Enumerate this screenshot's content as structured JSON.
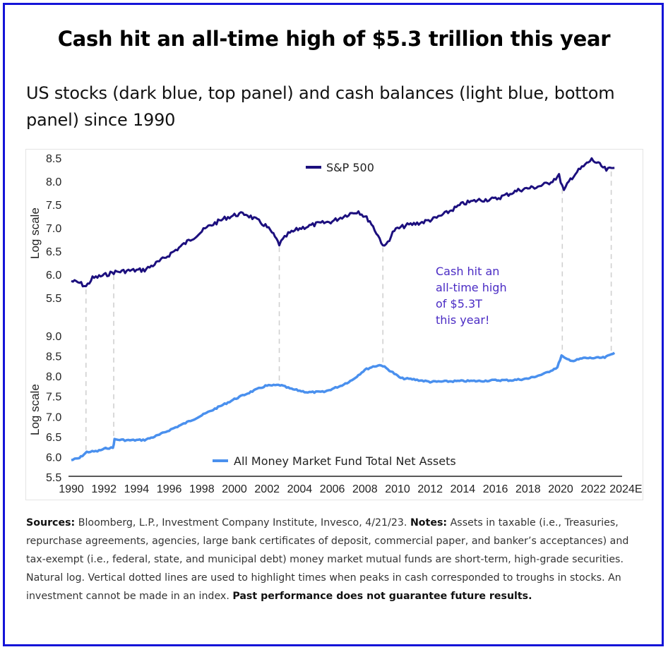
{
  "title": "Cash hit an all-time high of $5.3 trillion this year",
  "subtitle": "US stocks (dark blue, top panel) and cash balances (light blue, bottom panel) since 1990",
  "notes": {
    "sources_label": "Sources:",
    "sources_text": " Bloomberg, L.P., Investment Company Institute, Invesco, 4/21/23. ",
    "notes_label": "Notes:",
    "notes_text": " Assets in taxable (i.e., Treasuries, repurchase agreements, agencies, large bank certificates of deposit, commercial paper, and banker’s acceptances) and tax-exempt (i.e., federal, state, and municipal debt) money market mutual funds are short-term, high-grade securities. Natural log. Vertical dotted lines are used to highlight times when peaks in cash corresponded to troughs in stocks. An investment cannot be made in an index. ",
    "disclaimer": "Past performance does not guarantee future results."
  },
  "colors": {
    "sp500": "#1c0f7e",
    "cash": "#4a90ee",
    "annotation": "#4a2bc4",
    "guide": "#d0d0d0",
    "frame": "#1414d8"
  },
  "chart_data": [
    {
      "type": "line",
      "panel": "top",
      "title": "",
      "ylabel": "Log scale",
      "xlabel": "",
      "ylim": [
        5.5,
        8.5
      ],
      "yticks": [
        "8.5",
        "8.0",
        "7.5",
        "7.0",
        "6.5",
        "6.0",
        "5.5"
      ],
      "legend": "top-center",
      "series": [
        {
          "name": "S&P 500",
          "x": [
            1990.0,
            1990.5,
            1990.9,
            1991.3,
            1992.0,
            1992.6,
            1993.5,
            1994.5,
            1995.5,
            1996.5,
            1997.5,
            1998.5,
            1999.5,
            2000.2,
            2000.7,
            2001.3,
            2001.9,
            2002.3,
            2002.75,
            2003.3,
            2004.0,
            2005.0,
            2006.0,
            2007.0,
            2007.6,
            2008.3,
            2008.7,
            2009.2,
            2009.8,
            2010.5,
            2011.5,
            2012.3,
            2013.0,
            2014.0,
            2015.0,
            2016.0,
            2016.6,
            2017.5,
            2018.5,
            2019.2,
            2019.9,
            2020.2,
            2020.6,
            2021.0,
            2021.9,
            2022.4,
            2022.8,
            2023.3
          ],
          "values": [
            5.86,
            5.82,
            5.74,
            5.92,
            5.98,
            6.05,
            6.08,
            6.1,
            6.3,
            6.55,
            6.8,
            7.05,
            7.22,
            7.29,
            7.3,
            7.18,
            7.05,
            6.9,
            6.65,
            6.87,
            6.99,
            7.08,
            7.14,
            7.3,
            7.36,
            7.15,
            6.9,
            6.58,
            6.95,
            7.05,
            7.12,
            7.2,
            7.32,
            7.52,
            7.6,
            7.62,
            7.7,
            7.82,
            7.88,
            7.95,
            8.12,
            7.79,
            8.05,
            8.2,
            8.47,
            8.35,
            8.24,
            8.29
          ]
        }
      ]
    },
    {
      "type": "line",
      "panel": "bottom",
      "title": "",
      "ylabel": "Log scale",
      "xlabel": "",
      "ylim": [
        5.5,
        9.0
      ],
      "yticks": [
        "9.0",
        "8.5",
        "8.0",
        "7.5",
        "7.0",
        "6.5",
        "6.0",
        "5.5"
      ],
      "xticks": [
        "1990",
        "1992",
        "1994",
        "1996",
        "1998",
        "2000",
        "2002",
        "2004",
        "2006",
        "2008",
        "2010",
        "2012",
        "2014",
        "2016",
        "2018",
        "2020",
        "2022",
        "2024E"
      ],
      "xlim": [
        1990,
        2024
      ],
      "legend": "bottom-center",
      "series": [
        {
          "name": "All Money Market Fund Total Net Assets",
          "x": [
            1990.0,
            1990.5,
            1990.95,
            1991.6,
            1992.2,
            1992.55,
            1992.65,
            1993.5,
            1994.5,
            1995.3,
            1996.0,
            1997.0,
            1998.0,
            1999.0,
            2000.0,
            2001.0,
            2001.9,
            2002.8,
            2003.5,
            2004.5,
            2005.5,
            2006.5,
            2007.2,
            2008.0,
            2008.5,
            2009.0,
            2009.6,
            2010.2,
            2011.0,
            2012.0,
            2013.0,
            2014.0,
            2015.0,
            2016.0,
            2017.0,
            2018.0,
            2019.0,
            2019.8,
            2020.05,
            2020.3,
            2020.8,
            2021.4,
            2022.0,
            2022.7,
            2023.3
          ],
          "values": [
            5.92,
            5.97,
            6.12,
            6.14,
            6.22,
            6.22,
            6.43,
            6.41,
            6.42,
            6.53,
            6.66,
            6.84,
            7.03,
            7.23,
            7.43,
            7.61,
            7.76,
            7.78,
            7.68,
            7.6,
            7.61,
            7.76,
            7.9,
            8.16,
            8.24,
            8.28,
            8.12,
            7.95,
            7.92,
            7.86,
            7.87,
            7.88,
            7.88,
            7.9,
            7.9,
            7.94,
            8.06,
            8.22,
            8.51,
            8.43,
            8.38,
            8.45,
            8.45,
            8.46,
            8.58
          ]
        }
      ]
    }
  ],
  "guides": [
    1990.9,
    1992.6,
    2002.75,
    2009.1,
    2020.1,
    2023.1
  ],
  "annotation": [
    "Cash hit an",
    "all-time high",
    "of $5.3T",
    "this year!"
  ]
}
